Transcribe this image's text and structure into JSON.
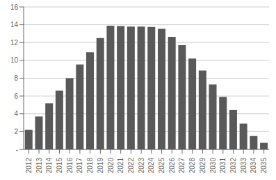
{
  "chart_data": {
    "type": "bar",
    "categories": [
      "2012",
      "2013",
      "2014",
      "2015",
      "2016",
      "2017",
      "2018",
      "2019",
      "2020",
      "2021",
      "2022",
      "2023",
      "2024",
      "2025",
      "2026",
      "2027",
      "2028",
      "2029",
      "2030",
      "2031",
      "2032",
      "2033",
      "2034",
      "2035"
    ],
    "values": [
      2.2,
      3.7,
      5.2,
      6.6,
      8.0,
      9.55,
      10.9,
      12.5,
      13.9,
      13.85,
      13.8,
      13.8,
      13.75,
      13.55,
      12.65,
      11.7,
      10.2,
      8.85,
      7.3,
      5.9,
      4.45,
      2.9,
      1.5,
      0.75
    ],
    "color": "#595959",
    "ylim": [
      0,
      16
    ],
    "yticks": [
      {
        "value": 0,
        "label": "-"
      },
      2,
      4,
      6,
      8,
      10,
      12,
      14,
      16
    ],
    "grid": true
  }
}
